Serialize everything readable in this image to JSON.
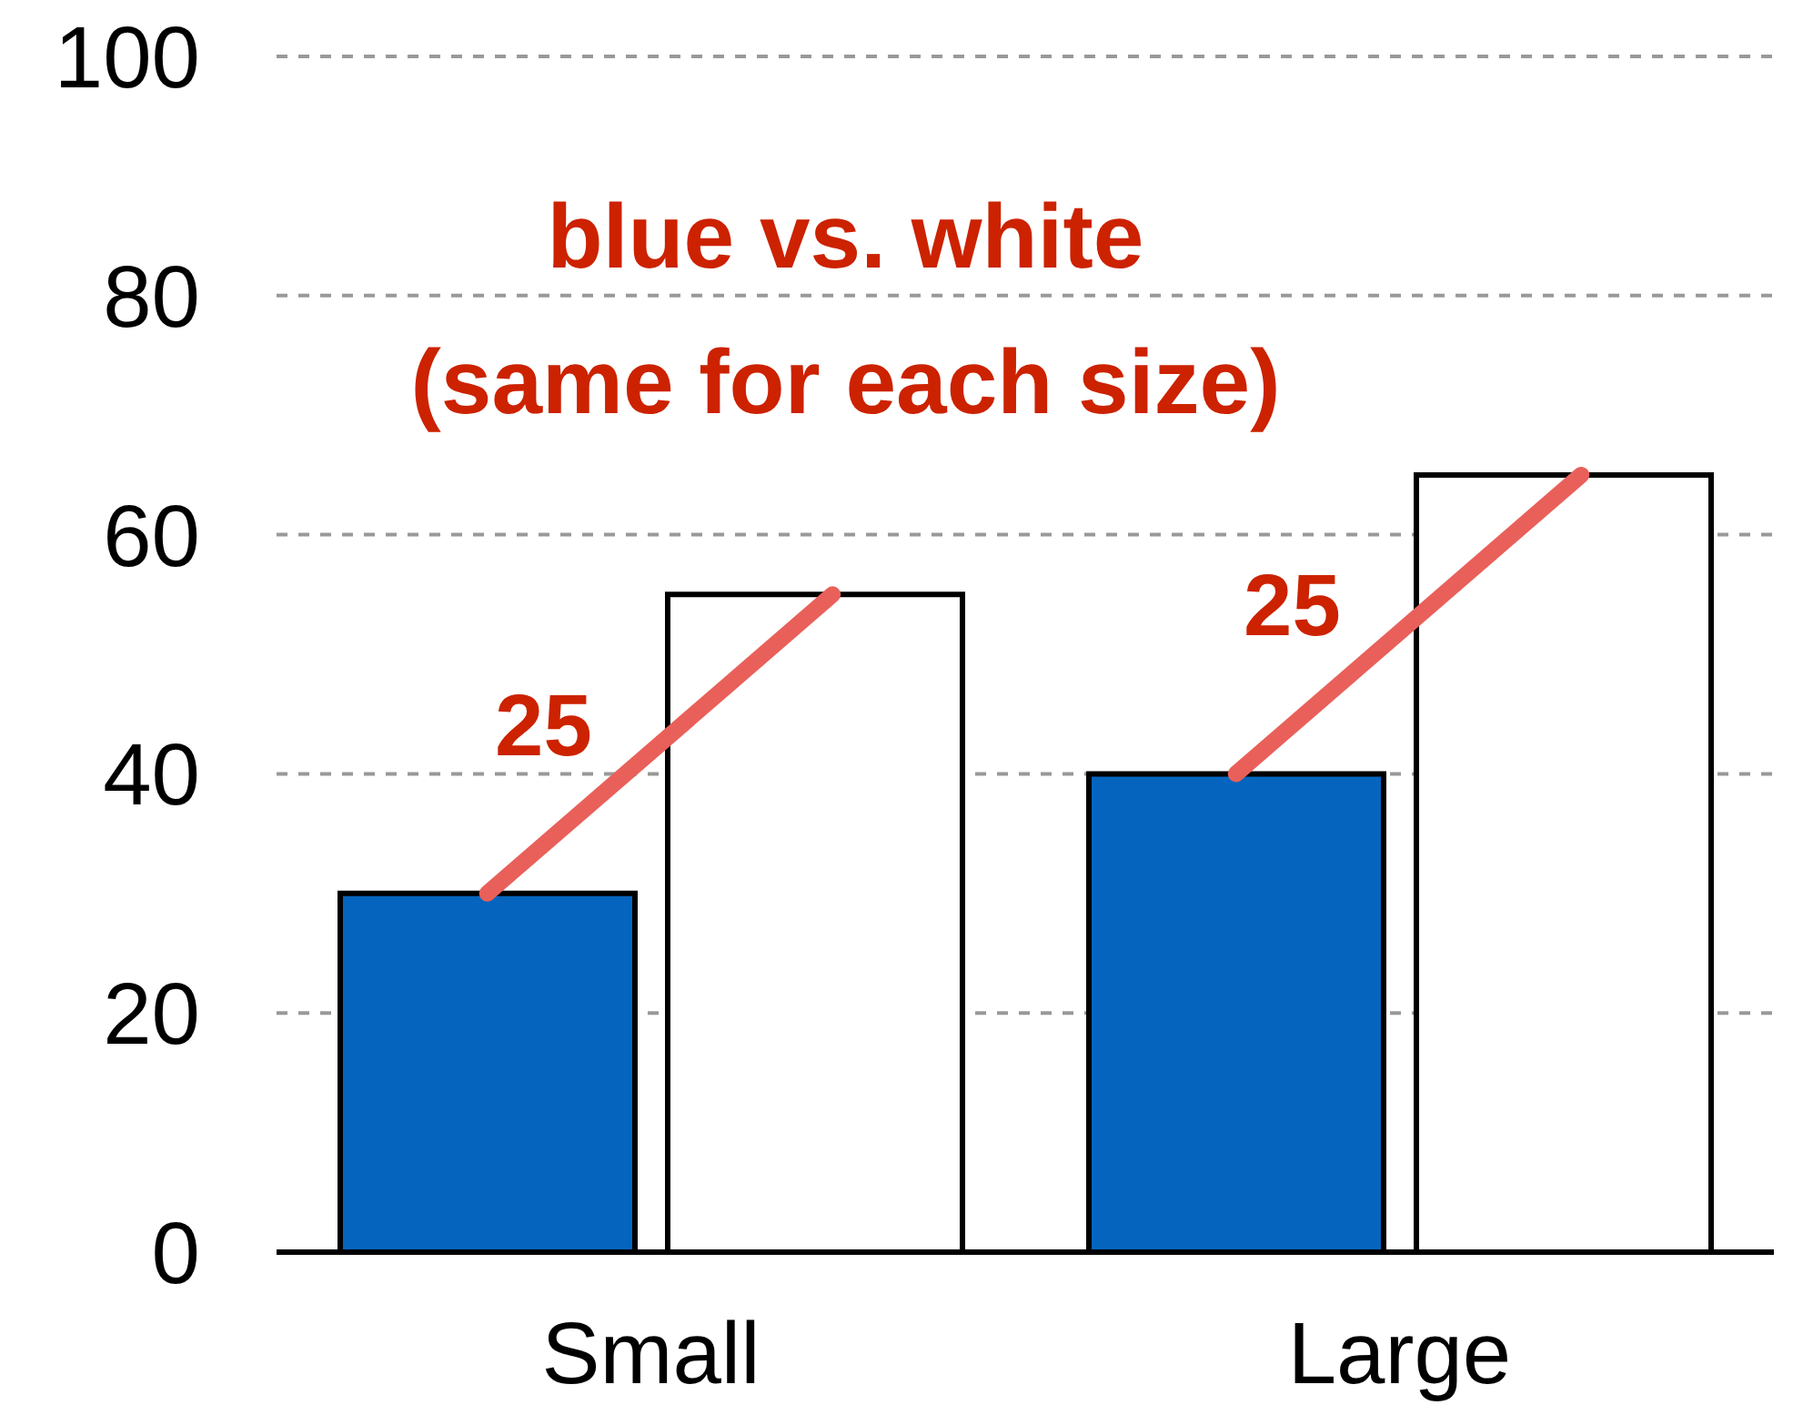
{
  "chart_data": {
    "type": "bar",
    "categories": [
      "Small",
      "Large"
    ],
    "series": [
      {
        "color": "#0564be",
        "values": [
          30,
          40
        ]
      },
      {
        "color": "#ffffff",
        "values": [
          55,
          65
        ]
      }
    ],
    "ylim": [
      0,
      100
    ],
    "yticks": [
      0,
      20,
      40,
      60,
      80,
      100
    ],
    "grid": "y",
    "annotations": [
      "blue vs. white\n(same for each size)",
      "25",
      "25"
    ]
  }
}
